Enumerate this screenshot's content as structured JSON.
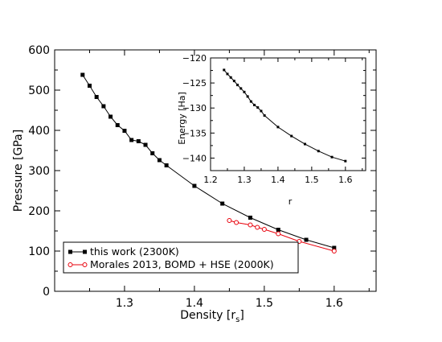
{
  "chart_data": [
    {
      "type": "line",
      "xlabel": "Density [r",
      "xlabel_sub": "s",
      "xlabel_close": "]",
      "ylabel": "Pressure [GPa]",
      "xlim": [
        1.2,
        1.66
      ],
      "ylim": [
        0,
        600
      ],
      "xticks": [
        1.3,
        1.4,
        1.5,
        1.6
      ],
      "yticks": [
        0,
        100,
        200,
        300,
        400,
        500,
        600
      ],
      "grid": false,
      "legend_position": "bottom-left",
      "series": [
        {
          "name": "this work (2300K)",
          "color": "#000000",
          "marker": "square",
          "x": [
            1.24,
            1.25,
            1.26,
            1.27,
            1.28,
            1.29,
            1.3,
            1.31,
            1.32,
            1.33,
            1.34,
            1.35,
            1.36,
            1.4,
            1.44,
            1.48,
            1.52,
            1.56,
            1.6
          ],
          "y": [
            538,
            511,
            483,
            460,
            434,
            413,
            399,
            376,
            373,
            364,
            343,
            326,
            313,
            262,
            218,
            183,
            153,
            128,
            108
          ]
        },
        {
          "name": "Morales 2013, BOMD + HSE (2000K)",
          "color": "#e8000b",
          "marker": "circle-open",
          "x": [
            1.45,
            1.46,
            1.48,
            1.49,
            1.5,
            1.52,
            1.55,
            1.6
          ],
          "y": [
            176,
            171,
            165,
            159,
            154,
            143,
            124,
            100
          ]
        }
      ]
    },
    {
      "type": "line",
      "xlabel": "r",
      "ylabel": "Energy [Ha]",
      "xlim": [
        1.2,
        1.66
      ],
      "ylim": [
        -142.5,
        -120
      ],
      "xticks": [
        1.2,
        1.3,
        1.4,
        1.5,
        1.6
      ],
      "yticks": [
        -140,
        -135,
        -130,
        -125,
        -120
      ],
      "series": [
        {
          "color": "#000000",
          "marker": "small-square",
          "x": [
            1.24,
            1.25,
            1.26,
            1.27,
            1.28,
            1.29,
            1.3,
            1.31,
            1.32,
            1.33,
            1.34,
            1.35,
            1.36,
            1.4,
            1.44,
            1.48,
            1.52,
            1.56,
            1.6
          ],
          "y": [
            -122.4,
            -123.2,
            -123.9,
            -124.6,
            -125.4,
            -126.1,
            -126.8,
            -127.7,
            -128.7,
            -129.4,
            -129.9,
            -130.6,
            -131.5,
            -133.8,
            -135.6,
            -137.2,
            -138.6,
            -139.8,
            -140.6
          ]
        }
      ]
    }
  ]
}
